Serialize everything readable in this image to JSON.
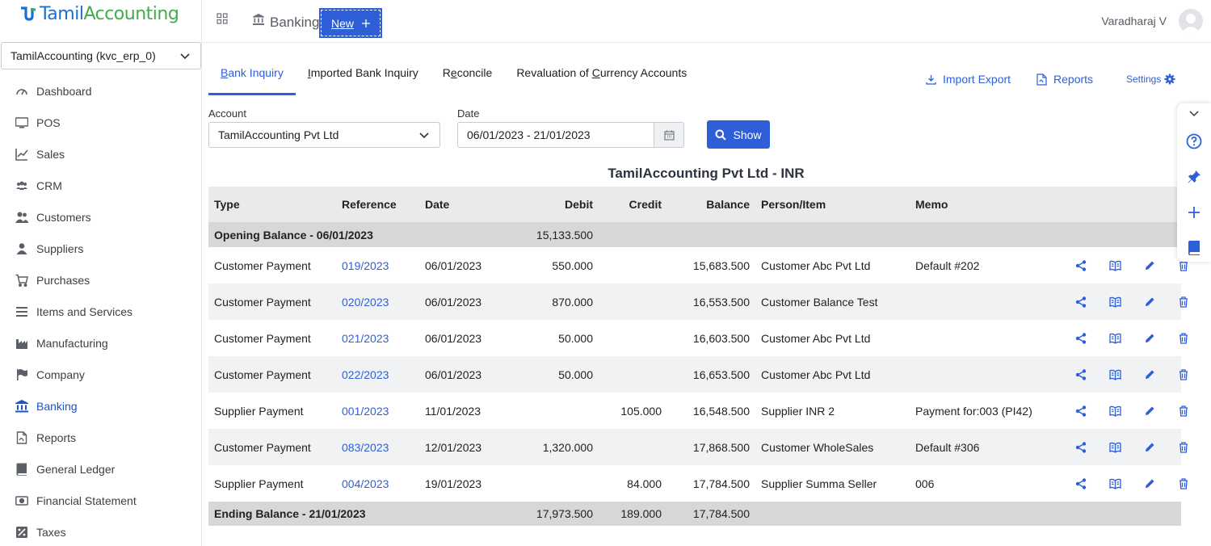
{
  "app": {
    "logo_part1": "Tamil",
    "logo_part2": "Accounting",
    "company": "TamilAccounting (kvc_erp_0)",
    "page_title": "Banking",
    "new_label": "New",
    "user_name": "Varadharaj V",
    "accent_color": "#2e5fd6"
  },
  "sidebar": {
    "items": [
      {
        "label": "Dashboard",
        "icon": "gauge-icon"
      },
      {
        "label": "POS",
        "icon": "monitor-icon"
      },
      {
        "label": "Sales",
        "icon": "chart-line-icon"
      },
      {
        "label": "CRM",
        "icon": "users-icon"
      },
      {
        "label": "Customers",
        "icon": "user-group-icon"
      },
      {
        "label": "Suppliers",
        "icon": "user-icon"
      },
      {
        "label": "Purchases",
        "icon": "cart-icon"
      },
      {
        "label": "Items and Services",
        "icon": "list-icon"
      },
      {
        "label": "Manufacturing",
        "icon": "factory-icon"
      },
      {
        "label": "Company",
        "icon": "flag-icon"
      },
      {
        "label": "Banking",
        "icon": "bank-icon",
        "active": true
      },
      {
        "label": "Reports",
        "icon": "file-icon"
      },
      {
        "label": "General Ledger",
        "icon": "book-icon"
      },
      {
        "label": "Financial Statement",
        "icon": "money-icon"
      },
      {
        "label": "Taxes",
        "icon": "tax-icon"
      }
    ]
  },
  "tabs": {
    "bank_inquiry": {
      "pre": "",
      "u": "B",
      "post": "ank Inquiry"
    },
    "imported": {
      "pre": "",
      "u": "I",
      "post": "mported Bank Inquiry"
    },
    "reconcile": {
      "pre": "R",
      "u": "e",
      "post": "concile"
    },
    "revaluation": {
      "pre": "Revaluation of ",
      "u": "C",
      "post": "urrency Accounts"
    }
  },
  "actions": {
    "import_export": "Import Export",
    "reports": "Reports",
    "settings": "Settings"
  },
  "filters": {
    "account_label": "Account",
    "account_value": "TamilAccounting Pvt Ltd",
    "date_label": "Date",
    "date_value": "06/01/2023 - 21/01/2023",
    "show_label": "Show"
  },
  "table": {
    "title": "TamilAccounting Pvt Ltd - INR",
    "headers": {
      "type": "Type",
      "reference": "Reference",
      "date": "Date",
      "debit": "Debit",
      "credit": "Credit",
      "balance": "Balance",
      "person": "Person/Item",
      "memo": "Memo"
    },
    "opening": {
      "label": "Opening Balance - 06/01/2023",
      "debit": "15,133.500"
    },
    "rows": [
      {
        "type": "Customer Payment",
        "ref": "019/2023",
        "date": "06/01/2023",
        "debit": "550.000",
        "credit": "",
        "balance": "15,683.500",
        "person": "Customer Abc Pvt Ltd",
        "memo": "Default #202"
      },
      {
        "type": "Customer Payment",
        "ref": "020/2023",
        "date": "06/01/2023",
        "debit": "870.000",
        "credit": "",
        "balance": "16,553.500",
        "person": "Customer Balance Test",
        "memo": ""
      },
      {
        "type": "Customer Payment",
        "ref": "021/2023",
        "date": "06/01/2023",
        "debit": "50.000",
        "credit": "",
        "balance": "16,603.500",
        "person": "Customer Abc Pvt Ltd",
        "memo": ""
      },
      {
        "type": "Customer Payment",
        "ref": "022/2023",
        "date": "06/01/2023",
        "debit": "50.000",
        "credit": "",
        "balance": "16,653.500",
        "person": "Customer Abc Pvt Ltd",
        "memo": ""
      },
      {
        "type": "Supplier Payment",
        "ref": "001/2023",
        "date": "11/01/2023",
        "debit": "",
        "credit": "105.000",
        "balance": "16,548.500",
        "person": "Supplier INR 2",
        "memo": "Payment for:003 (PI42)"
      },
      {
        "type": "Customer Payment",
        "ref": "083/2023",
        "date": "12/01/2023",
        "debit": "1,320.000",
        "credit": "",
        "balance": "17,868.500",
        "person": "Customer WholeSales",
        "memo": "Default #306"
      },
      {
        "type": "Supplier Payment",
        "ref": "004/2023",
        "date": "19/01/2023",
        "debit": "",
        "credit": "84.000",
        "balance": "17,784.500",
        "person": "Supplier Summa Seller",
        "memo": "006"
      }
    ],
    "ending": {
      "label": "Ending Balance - 21/01/2023",
      "debit": "17,973.500",
      "credit": "189.000",
      "balance": "17,784.500"
    }
  }
}
